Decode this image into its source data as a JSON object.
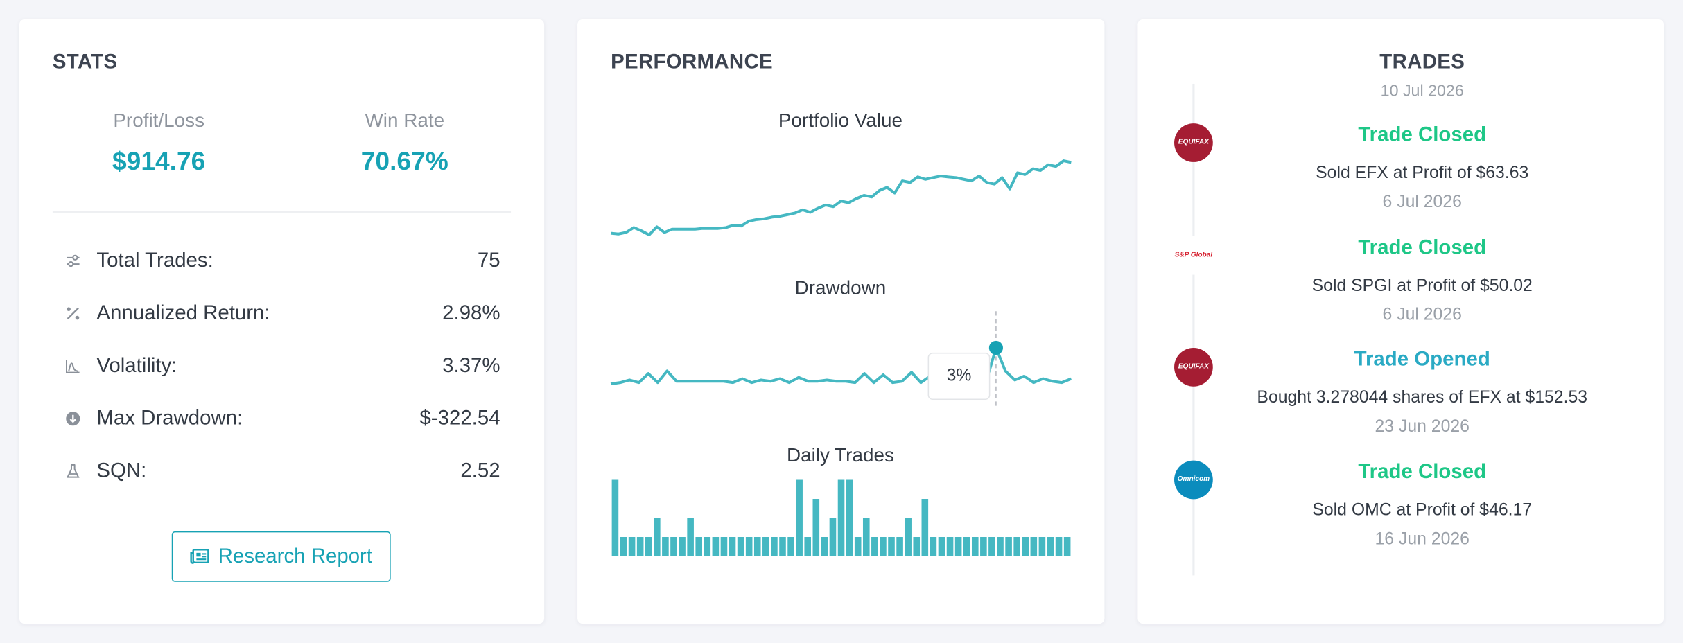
{
  "stats": {
    "title": "STATS",
    "profit_loss": {
      "label": "Profit/Loss",
      "value": "$914.76"
    },
    "win_rate": {
      "label": "Win Rate",
      "value": "70.67%"
    },
    "rows": [
      {
        "label": "Total Trades:",
        "value": "75"
      },
      {
        "label": "Annualized Return:",
        "value": "2.98%"
      },
      {
        "label": "Volatility:",
        "value": "3.37%"
      },
      {
        "label": "Max Drawdown:",
        "value": "$-322.54"
      },
      {
        "label": "SQN:",
        "value": "2.52"
      }
    ],
    "button": "Research Report"
  },
  "performance": {
    "title": "PERFORMANCE",
    "charts": [
      {
        "type": "line",
        "title": "Portfolio Value",
        "color": "#45b8c2",
        "values": [
          5,
          4,
          6,
          12,
          8,
          3,
          13,
          6,
          10,
          10,
          10,
          10,
          11,
          11,
          11,
          12,
          15,
          14,
          20,
          22,
          23,
          25,
          26,
          28,
          30,
          34,
          31,
          36,
          40,
          38,
          45,
          43,
          48,
          52,
          50,
          58,
          62,
          55,
          70,
          68,
          75,
          72,
          74,
          76,
          75,
          74,
          72,
          70,
          76,
          68,
          66,
          74,
          60,
          80,
          78,
          85,
          83,
          90,
          88,
          95,
          93
        ]
      },
      {
        "type": "line",
        "title": "Drawdown",
        "color": "#45b8c2",
        "tooltip_label": "3%",
        "values": [
          0.2,
          0.3,
          0.5,
          0.3,
          1.0,
          0.3,
          1.2,
          0.4,
          0.4,
          0.4,
          0.4,
          0.4,
          0.4,
          0.3,
          0.6,
          0.3,
          0.5,
          0.4,
          0.6,
          0.3,
          0.7,
          0.4,
          0.4,
          0.5,
          0.4,
          0.4,
          0.3,
          1.0,
          0.3,
          0.9,
          0.3,
          0.4,
          1.1,
          0.3,
          0.8,
          0.4,
          0.5,
          0.4,
          0.3,
          0.4,
          0.5,
          3,
          1.2,
          0.5,
          0.8,
          0.3,
          0.6,
          0.4,
          0.3,
          0.6
        ]
      },
      {
        "type": "bar",
        "title": "Daily Trades",
        "color": "#45b8c2",
        "values": [
          4,
          1,
          1,
          1,
          1,
          2,
          1,
          1,
          1,
          2,
          1,
          1,
          1,
          1,
          1,
          1,
          1,
          1,
          1,
          1,
          1,
          1,
          4,
          1,
          3,
          1,
          2,
          4,
          4,
          1,
          2,
          1,
          1,
          1,
          1,
          2,
          1,
          3,
          1,
          1,
          1,
          1,
          1,
          1,
          1,
          1,
          1,
          1,
          1,
          1,
          1,
          1,
          1,
          1,
          1
        ]
      }
    ]
  },
  "trades": {
    "title": "TRADES",
    "top_date": "10 Jul 2026",
    "items": [
      {
        "logo": "EQUIFAX",
        "logo_bg": "#a51d33",
        "logo_color": "#ffffff",
        "status": "Trade Closed",
        "color": "#1ec787",
        "text": "Sold EFX at Profit of $63.63",
        "date": "6 Jul 2026"
      },
      {
        "logo": "S&P Global",
        "logo_bg": "#ffffff",
        "logo_color": "#d6202f",
        "status": "Trade Closed",
        "color": "#1ec787",
        "text": "Sold SPGI at Profit of $50.02",
        "date": "6 Jul 2026"
      },
      {
        "logo": "EQUIFAX",
        "logo_bg": "#a51d33",
        "logo_color": "#ffffff",
        "status": "Trade Opened",
        "color": "#2aaac4",
        "text": "Bought 3.278044 shares of EFX at $152.53",
        "date": "23 Jun 2026"
      },
      {
        "logo": "Omnicom",
        "logo_bg": "#0b8cbd",
        "logo_color": "#ffffff",
        "status": "Trade Closed",
        "color": "#1ec787",
        "text": "Sold OMC at Profit of $46.17",
        "date": "16 Jun 2026"
      }
    ]
  }
}
